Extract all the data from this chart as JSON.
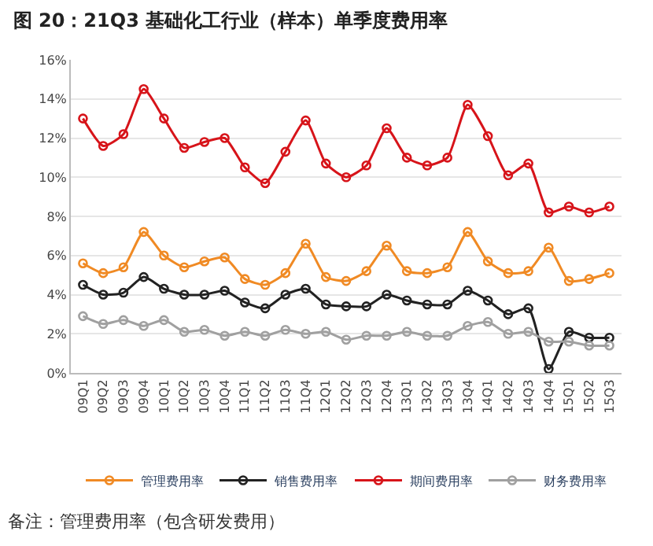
{
  "chart_data": {
    "type": "line",
    "title": "图 20：21Q3 基础化工行业（样本）单季度费用率",
    "categories": [
      "09Q1",
      "09Q2",
      "09Q3",
      "09Q4",
      "10Q1",
      "10Q2",
      "10Q3",
      "10Q4",
      "11Q1",
      "11Q2",
      "11Q3",
      "11Q4",
      "12Q1",
      "12Q2",
      "12Q3",
      "12Q4",
      "13Q1",
      "13Q2",
      "13Q3",
      "13Q4",
      "14Q1",
      "14Q2",
      "14Q3",
      "14Q4",
      "15Q1",
      "15Q2",
      "15Q3"
    ],
    "series": [
      {
        "name": "管理费用率",
        "color": "#f08a24",
        "values": [
          5.6,
          5.1,
          5.4,
          7.2,
          6.0,
          5.4,
          5.7,
          5.9,
          4.8,
          4.5,
          5.1,
          6.6,
          4.9,
          4.7,
          5.2,
          6.5,
          5.2,
          5.1,
          5.4,
          7.2,
          5.7,
          5.1,
          5.2,
          6.4,
          4.7,
          4.8,
          5.1
        ]
      },
      {
        "name": "销售费用率",
        "color": "#222222",
        "values": [
          4.5,
          4.0,
          4.1,
          4.9,
          4.3,
          4.0,
          4.0,
          4.2,
          3.6,
          3.3,
          4.0,
          4.3,
          3.5,
          3.4,
          3.4,
          4.0,
          3.7,
          3.5,
          3.5,
          4.2,
          3.7,
          3.0,
          3.3,
          0.2,
          2.1,
          1.8,
          1.8
        ]
      },
      {
        "name": "期间费用率",
        "color": "#d7141a",
        "values": [
          13.0,
          11.6,
          12.2,
          14.5,
          13.0,
          11.5,
          11.8,
          12.0,
          10.5,
          9.7,
          11.3,
          12.9,
          10.7,
          10.0,
          10.6,
          12.5,
          11.0,
          10.6,
          11.0,
          13.7,
          12.1,
          10.1,
          10.7,
          8.2,
          8.5,
          8.2,
          8.5
        ]
      },
      {
        "name": "财务费用率",
        "color": "#a0a0a0",
        "values": [
          2.9,
          2.5,
          2.7,
          2.4,
          2.7,
          2.1,
          2.2,
          1.9,
          2.1,
          1.9,
          2.2,
          2.0,
          2.1,
          1.7,
          1.9,
          1.9,
          2.1,
          1.9,
          1.9,
          2.4,
          2.6,
          2.0,
          2.1,
          1.6,
          1.6,
          1.4,
          1.4
        ]
      }
    ],
    "ylim": [
      0,
      16
    ],
    "yticks": [
      {
        "value": 0,
        "label": "0%"
      },
      {
        "value": 2,
        "label": "2%"
      },
      {
        "value": 4,
        "label": "4%"
      },
      {
        "value": 6,
        "label": "6%"
      },
      {
        "value": 8,
        "label": "8%"
      },
      {
        "value": 10,
        "label": "10%"
      },
      {
        "value": 12,
        "label": "12%"
      },
      {
        "value": 14,
        "label": "14%"
      },
      {
        "value": 16,
        "label": "16%"
      }
    ],
    "grid": "y",
    "legend": "bottom",
    "marker": "circle",
    "line_style": "solid",
    "annotations": [
      "备注：管理费用率（包含研发费用）"
    ]
  }
}
